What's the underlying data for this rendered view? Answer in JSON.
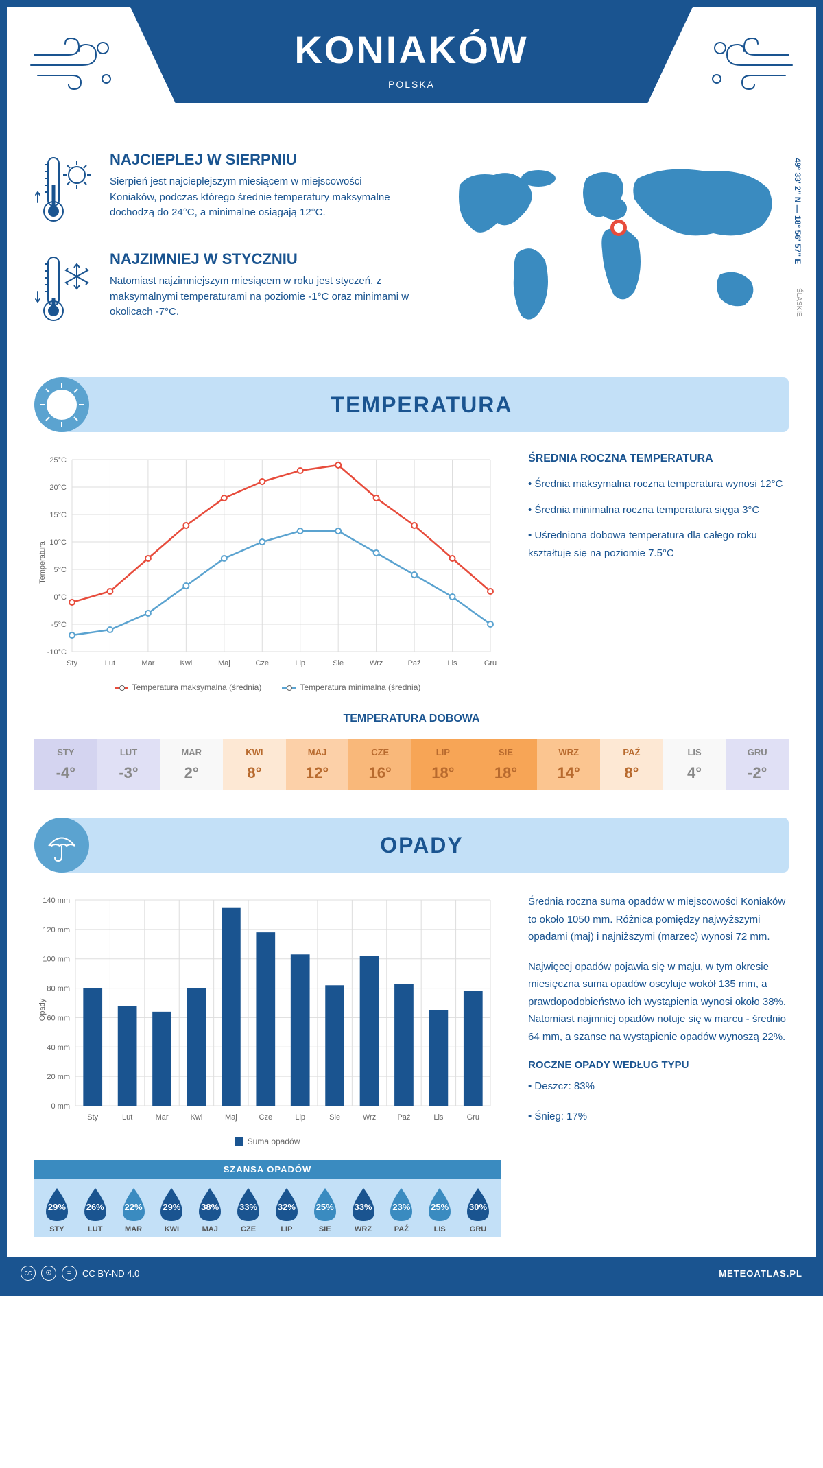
{
  "header": {
    "title": "KONIAKÓW",
    "subtitle": "POLSKA"
  },
  "coords": "49° 33' 2\" N — 18° 56' 57\" E",
  "region": "ŚLĄSKIE",
  "facts": {
    "warm": {
      "title": "NAJCIEPLEJ W SIERPNIU",
      "text": "Sierpień jest najcieplejszym miesiącem w miejscowości Koniaków, podczas którego średnie temperatury maksymalne dochodzą do 24°C, a minimalne osiągają 12°C."
    },
    "cold": {
      "title": "NAJZIMNIEJ W STYCZNIU",
      "text": "Natomiast najzimniejszym miesiącem w roku jest styczeń, z maksymalnymi temperaturami na poziomie -1°C oraz minimami w okolicach -7°C."
    }
  },
  "temp_section": {
    "title": "TEMPERATURA",
    "months": [
      "Sty",
      "Lut",
      "Mar",
      "Kwi",
      "Maj",
      "Cze",
      "Lip",
      "Sie",
      "Wrz",
      "Paź",
      "Lis",
      "Gru"
    ],
    "max_series": [
      -1,
      1,
      7,
      13,
      18,
      21,
      23,
      24,
      18,
      13,
      7,
      1
    ],
    "min_series": [
      -7,
      -6,
      -3,
      2,
      7,
      10,
      12,
      12,
      8,
      4,
      0,
      -5
    ],
    "max_color": "#e74c3c",
    "min_color": "#5ba3d0",
    "ylim": [
      -10,
      25
    ],
    "ytick_step": 5,
    "y_unit": "°C",
    "y_title": "Temperatura",
    "grid_color": "#dddddd",
    "legend_max": "Temperatura maksymalna (średnia)",
    "legend_min": "Temperatura minimalna (średnia)",
    "info_title": "ŚREDNIA ROCZNA TEMPERATURA",
    "info_points": [
      "• Średnia maksymalna roczna temperatura wynosi 12°C",
      "• Średnia minimalna roczna temperatura sięga 3°C",
      "• Uśredniona dobowa temperatura dla całego roku kształtuje się na poziomie 7.5°C"
    ]
  },
  "daily_temp": {
    "title": "TEMPERATURA DOBOWA",
    "months": [
      "STY",
      "LUT",
      "MAR",
      "KWI",
      "MAJ",
      "CZE",
      "LIP",
      "SIE",
      "WRZ",
      "PAŹ",
      "LIS",
      "GRU"
    ],
    "values": [
      "-4°",
      "-3°",
      "2°",
      "8°",
      "12°",
      "16°",
      "18°",
      "18°",
      "14°",
      "8°",
      "4°",
      "-2°"
    ],
    "bg_colors": [
      "#d4d4f0",
      "#e0e0f5",
      "#f8f8f8",
      "#fde8d4",
      "#fcd0a8",
      "#f9b87a",
      "#f7a556",
      "#f7a556",
      "#fbc590",
      "#fde8d4",
      "#f8f8f8",
      "#e0e0f5"
    ],
    "text_colors": [
      "#888",
      "#888",
      "#888",
      "#b86a2e",
      "#b86a2e",
      "#b86a2e",
      "#b86a2e",
      "#b86a2e",
      "#b86a2e",
      "#b86a2e",
      "#888",
      "#888"
    ]
  },
  "precip_section": {
    "title": "OPADY",
    "months": [
      "Sty",
      "Lut",
      "Mar",
      "Kwi",
      "Maj",
      "Cze",
      "Lip",
      "Sie",
      "Wrz",
      "Paź",
      "Lis",
      "Gru"
    ],
    "values": [
      80,
      68,
      64,
      80,
      135,
      118,
      103,
      82,
      102,
      83,
      65,
      78
    ],
    "bar_color": "#1a5490",
    "ylim": [
      0,
      140
    ],
    "ytick_step": 20,
    "y_unit": " mm",
    "y_title": "Opady",
    "legend": "Suma opadów",
    "para1": "Średnia roczna suma opadów w miejscowości Koniaków to około 1050 mm. Różnica pomiędzy najwyższymi opadami (maj) i najniższymi (marzec) wynosi 72 mm.",
    "para2": "Najwięcej opadów pojawia się w maju, w tym okresie miesięczna suma opadów oscyluje wokół 135 mm, a prawdopodobieństwo ich wystąpienia wynosi około 38%. Natomiast najmniej opadów notuje się w marcu - średnio 64 mm, a szanse na wystąpienie opadów wynoszą 22%.",
    "type_title": "ROCZNE OPADY WEDŁUG TYPU",
    "type_points": [
      "• Deszcz: 83%",
      "• Śnieg: 17%"
    ]
  },
  "chance": {
    "title": "SZANSA OPADÓW",
    "months": [
      "STY",
      "LUT",
      "MAR",
      "KWI",
      "MAJ",
      "CZE",
      "LIP",
      "SIE",
      "WRZ",
      "PAŹ",
      "LIS",
      "GRU"
    ],
    "values": [
      "29%",
      "26%",
      "22%",
      "29%",
      "38%",
      "33%",
      "32%",
      "25%",
      "33%",
      "23%",
      "25%",
      "30%"
    ],
    "colors": [
      "#1a5490",
      "#1a5490",
      "#3a8bc0",
      "#1a5490",
      "#1a5490",
      "#1a5490",
      "#1a5490",
      "#3a8bc0",
      "#1a5490",
      "#3a8bc0",
      "#3a8bc0",
      "#1a5490"
    ]
  },
  "footer": {
    "license": "CC BY-ND 4.0",
    "site": "METEOATLAS.PL"
  }
}
